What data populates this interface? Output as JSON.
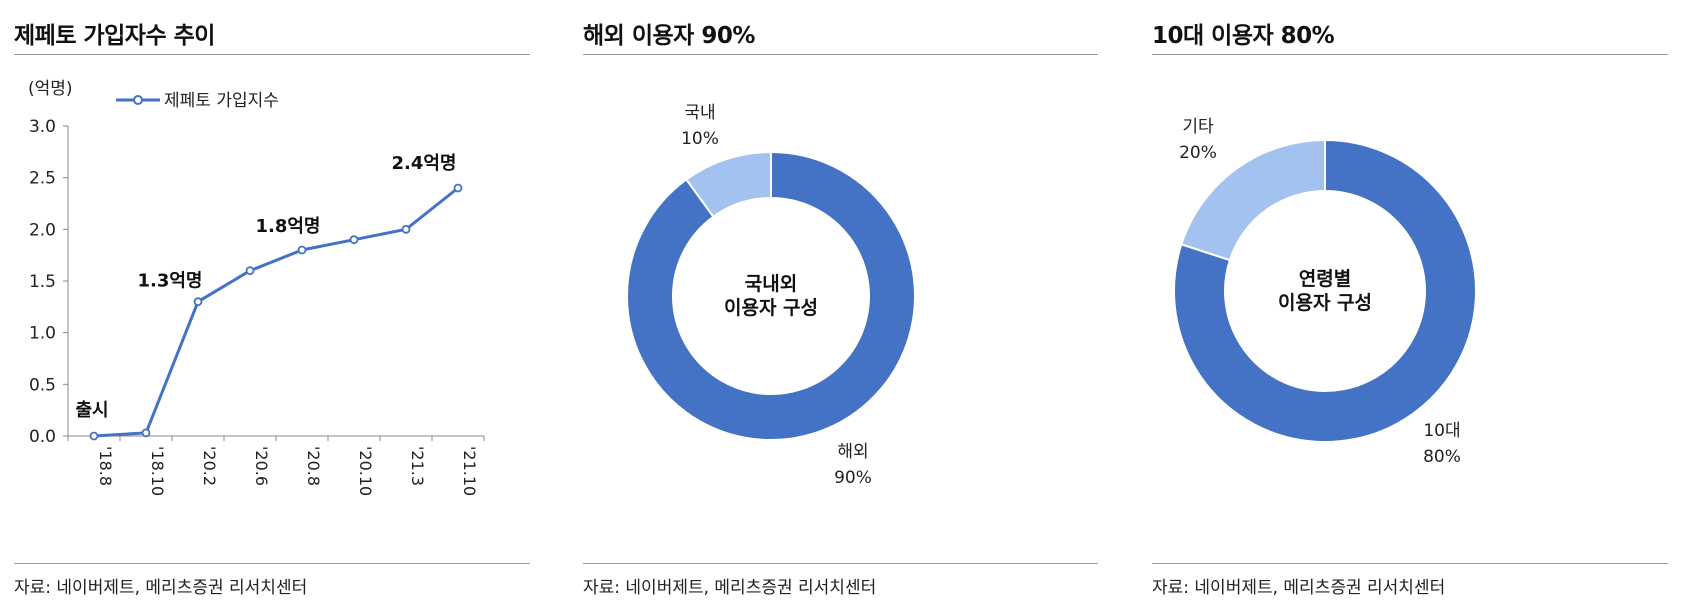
{
  "panels": [
    {
      "title": "제페토 가입자수 추이",
      "source": "자료: 네이버제트, 메리츠증권 리서치센터"
    },
    {
      "title": "해외 이용자 90%",
      "source": "자료: 네이버제트, 메리츠증권 리서치센터"
    },
    {
      "title": "10대 이용자 80%",
      "source": "자료: 네이버제트, 메리츠증권 리서치센터"
    }
  ],
  "colors": {
    "primary": "#4472c4",
    "light": "#a3c2ef",
    "axis": "#888888"
  },
  "chart_data": [
    {
      "type": "line",
      "ylabel": "(억명)",
      "ylim": [
        0,
        3.0
      ],
      "yticks": [
        "0.0",
        "0.5",
        "1.0",
        "1.5",
        "2.0",
        "2.5",
        "3.0"
      ],
      "xticks": [
        "'18.8",
        "'18.10",
        "'20.2",
        "'20.6",
        "'20.8",
        "'20.10",
        "'21.3",
        "'21.10"
      ],
      "legend_position": "top-left",
      "grid": false,
      "series": [
        {
          "name": "제페토 가입지수",
          "x": [
            "'18.8",
            "'18.10",
            "'20.2",
            "'20.6",
            "'20.8",
            "'20.10",
            "'21.3",
            "'21.10"
          ],
          "values": [
            0.0,
            0.03,
            1.3,
            1.6,
            1.8,
            1.9,
            2.0,
            2.4
          ]
        }
      ],
      "annotations": [
        {
          "x": "'18.8",
          "text": "출시"
        },
        {
          "x": "'20.2",
          "text": "1.3억명"
        },
        {
          "x": "'20.8",
          "text": "1.8억명"
        },
        {
          "x": "'21.10",
          "text": "2.4억명"
        }
      ]
    },
    {
      "type": "pie",
      "hole": true,
      "center_label": [
        "국내외",
        "이용자 구성"
      ],
      "slices": [
        {
          "label": "해외",
          "value": 90,
          "value_label": "90%",
          "color": "#4472c4"
        },
        {
          "label": "국내",
          "value": 10,
          "value_label": "10%",
          "color": "#a3c2ef"
        }
      ]
    },
    {
      "type": "pie",
      "hole": true,
      "center_label": [
        "연령별",
        "이용자 구성"
      ],
      "slices": [
        {
          "label": "10대",
          "value": 80,
          "value_label": "80%",
          "color": "#4472c4"
        },
        {
          "label": "기타",
          "value": 20,
          "value_label": "20%",
          "color": "#a3c2ef"
        }
      ]
    }
  ]
}
